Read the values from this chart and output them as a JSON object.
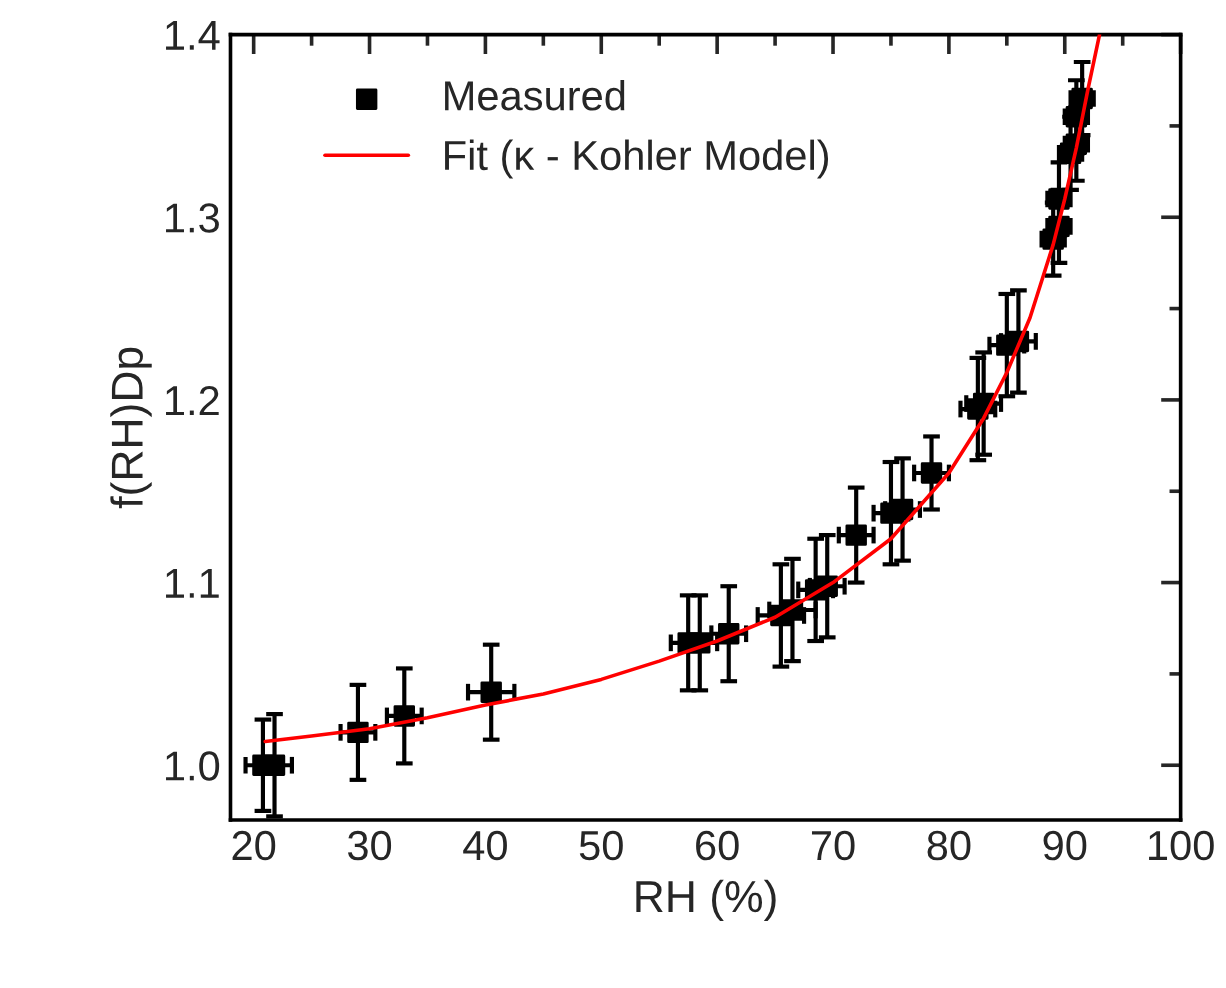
{
  "chart_data": {
    "type": "scatter",
    "xlabel": "RH (%)",
    "ylabel": "f(RH)Dp",
    "xlim": [
      18,
      100
    ],
    "ylim": [
      0.97,
      1.4
    ],
    "xticks": [
      20,
      30,
      40,
      50,
      60,
      70,
      80,
      90,
      100
    ],
    "yticks": [
      {
        "value": 1.0,
        "label": "1.0"
      },
      1.1,
      1.2,
      1.3,
      1.4
    ],
    "grid": false,
    "legend": "top left",
    "marker": "square",
    "series": [
      {
        "name": "Measured",
        "color": "#000000",
        "x": [
          20.8,
          21.8,
          29,
          33,
          40.5,
          57.5,
          58.5,
          61,
          65.5,
          66.5,
          68.5,
          69.5,
          72,
          75,
          76,
          78.5,
          82.5,
          83,
          85,
          86,
          89,
          89.5,
          89.5,
          90.5,
          91,
          91,
          91.5
        ],
        "values": [
          1.0,
          1.0,
          1.018,
          1.027,
          1.04,
          1.067,
          1.067,
          1.072,
          1.082,
          1.085,
          1.096,
          1.098,
          1.126,
          1.138,
          1.14,
          1.16,
          1.195,
          1.198,
          1.23,
          1.232,
          1.288,
          1.295,
          1.31,
          1.335,
          1.34,
          1.355,
          1.365
        ],
        "errors": [
          0.025,
          0.028,
          0.026,
          0.026,
          0.026,
          0.026,
          0.026,
          0.026,
          0.028,
          0.028,
          0.028,
          0.028,
          0.026,
          0.028,
          0.028,
          0.02,
          0.028,
          0.028,
          0.028,
          0.028,
          0.02,
          0.02,
          0.02,
          0.02,
          0.02,
          0.02,
          0.02
        ],
        "xerrors": [
          1.5,
          1.5,
          1.5,
          1.5,
          2,
          1.5,
          1.5,
          1.5,
          2,
          2,
          1.5,
          1.5,
          1.5,
          1.5,
          1.5,
          1.5,
          1.5,
          1.5,
          1.5,
          1.5,
          1,
          1,
          1,
          1,
          1,
          1,
          1
        ]
      },
      {
        "name": "Fit (κ - Kohler Model)",
        "type": "line",
        "color": "#ff0000",
        "marker": "none",
        "line_style": "solid",
        "x": [
          21,
          25,
          30,
          35,
          40,
          45,
          50,
          55,
          60,
          65,
          70,
          75,
          80,
          83,
          85,
          87,
          89,
          90,
          91,
          92,
          93
        ],
        "values": [
          1.013,
          1.016,
          1.02,
          1.026,
          1.033,
          1.039,
          1.047,
          1.057,
          1.068,
          1.081,
          1.1,
          1.124,
          1.16,
          1.19,
          1.215,
          1.245,
          1.285,
          1.31,
          1.338,
          1.37,
          1.4
        ]
      }
    ]
  }
}
